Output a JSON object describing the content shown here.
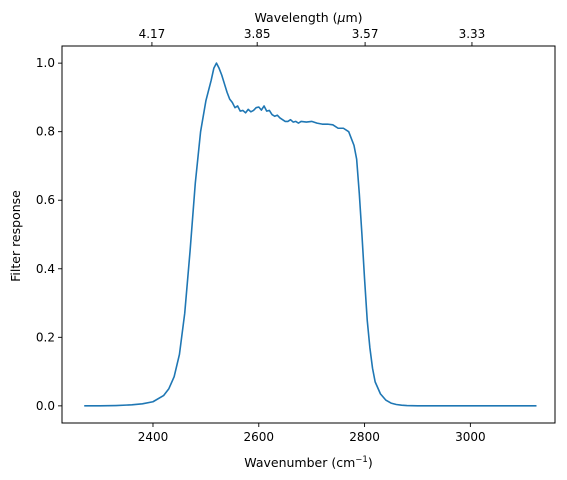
{
  "chart_data": {
    "type": "line",
    "xlabel": "Wavenumber (cm",
    "xlabel_sup": "−1",
    "xlabel_tail": ")",
    "ylabel": "Filter response",
    "top_xlabel_prefix": "Wavelength (",
    "top_xlabel_symbol": "μ",
    "top_xlabel_suffix": "m)",
    "xlim": [
      2228,
      3160
    ],
    "ylim": [
      -0.05,
      1.05
    ],
    "xticks": [
      2400,
      2600,
      2800,
      3000
    ],
    "yticks": [
      0.0,
      0.2,
      0.4,
      0.6,
      0.8,
      1.0
    ],
    "ytick_labels": [
      "0.0",
      "0.2",
      "0.4",
      "0.6",
      "0.8",
      "1.0"
    ],
    "top_ticks": [
      {
        "wavenumber": 2398,
        "label": "4.17"
      },
      {
        "wavenumber": 2597,
        "label": "3.85"
      },
      {
        "wavenumber": 2801,
        "label": "3.57"
      },
      {
        "wavenumber": 3003,
        "label": "3.33"
      }
    ],
    "grid": false,
    "line_color": "#1f77b4",
    "series": [
      {
        "x": [
          2270,
          2300,
          2330,
          2360,
          2380,
          2400,
          2420,
          2430,
          2440,
          2450,
          2460,
          2470,
          2480,
          2490,
          2500,
          2510,
          2515,
          2520,
          2525,
          2530,
          2535,
          2540,
          2545,
          2550,
          2555,
          2560,
          2565,
          2570,
          2575,
          2580,
          2585,
          2590,
          2595,
          2600,
          2605,
          2610,
          2615,
          2620,
          2625,
          2630,
          2635,
          2640,
          2645,
          2650,
          2655,
          2660,
          2665,
          2670,
          2675,
          2680,
          2690,
          2700,
          2710,
          2720,
          2730,
          2740,
          2750,
          2760,
          2770,
          2775,
          2780,
          2785,
          2790,
          2795,
          2800,
          2805,
          2810,
          2815,
          2820,
          2830,
          2840,
          2850,
          2860,
          2870,
          2880,
          2900,
          2950,
          3000,
          3050,
          3125
        ],
        "y": [
          0.0,
          0.0,
          0.001,
          0.003,
          0.006,
          0.012,
          0.03,
          0.05,
          0.085,
          0.15,
          0.27,
          0.45,
          0.65,
          0.8,
          0.89,
          0.95,
          0.985,
          1.0,
          0.985,
          0.965,
          0.94,
          0.915,
          0.895,
          0.885,
          0.87,
          0.875,
          0.86,
          0.862,
          0.855,
          0.865,
          0.858,
          0.862,
          0.87,
          0.872,
          0.863,
          0.875,
          0.86,
          0.862,
          0.85,
          0.845,
          0.848,
          0.84,
          0.835,
          0.83,
          0.83,
          0.835,
          0.828,
          0.83,
          0.825,
          0.83,
          0.828,
          0.83,
          0.825,
          0.822,
          0.822,
          0.82,
          0.81,
          0.81,
          0.8,
          0.78,
          0.76,
          0.72,
          0.62,
          0.5,
          0.37,
          0.25,
          0.17,
          0.11,
          0.07,
          0.035,
          0.017,
          0.008,
          0.004,
          0.002,
          0.001,
          0.0,
          0.0,
          0.0,
          0.0,
          0.0
        ]
      }
    ]
  }
}
